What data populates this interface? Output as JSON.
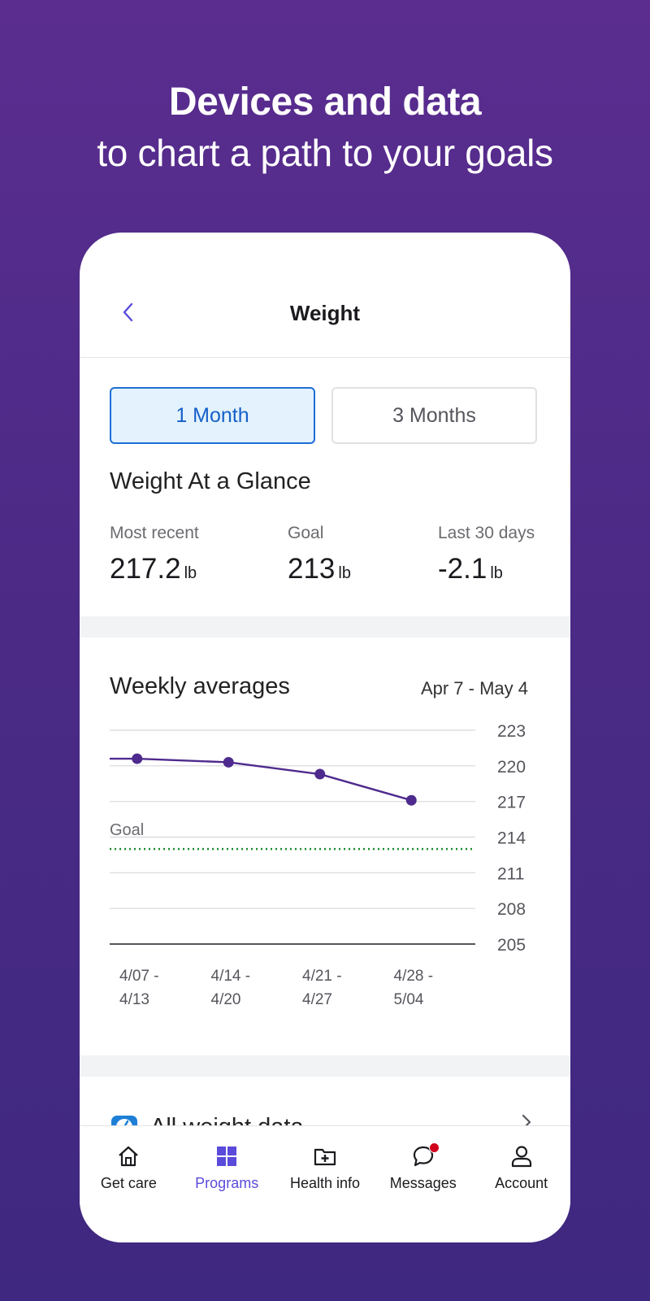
{
  "hero": {
    "title": "Devices and data",
    "subtitle": "to chart a path to your goals"
  },
  "screen": {
    "title": "Weight",
    "back_icon": "chevron-left-icon"
  },
  "range_tabs": [
    {
      "label": "1 Month",
      "selected": true
    },
    {
      "label": "3 Months",
      "selected": false
    }
  ],
  "glance": {
    "title": "Weight At a Glance",
    "stats": [
      {
        "label": "Most recent",
        "value": "217.2",
        "unit": "lb"
      },
      {
        "label": "Goal",
        "value": "213",
        "unit": "lb"
      },
      {
        "label": "Last 30 days",
        "value": "-2.1",
        "unit": "lb"
      }
    ]
  },
  "weekly": {
    "title": "Weekly averages",
    "date_range": "Apr 7 - May 4"
  },
  "chart_data": {
    "type": "line",
    "categories": [
      [
        "4/07 -",
        "4/13"
      ],
      [
        "4/14 -",
        "4/20"
      ],
      [
        "4/21 -",
        "4/27"
      ],
      [
        "4/28 -",
        "5/04"
      ]
    ],
    "series": [
      {
        "values": [
          220.6,
          220.3,
          219.3,
          217.1
        ],
        "color": "#4e2a8e"
      }
    ],
    "y_ticks": [
      223,
      220,
      217,
      214,
      211,
      208,
      205
    ],
    "ylim": [
      205,
      223
    ],
    "goal": {
      "label": "Goal",
      "value": 213,
      "color": "#1a8a2e"
    },
    "grid": true,
    "y_axis_position": "right"
  },
  "all_data": {
    "label": "All weight data",
    "icon": "scale-icon"
  },
  "tabbar": [
    {
      "label": "Get care",
      "icon": "home-icon",
      "active": false
    },
    {
      "label": "Programs",
      "icon": "grid-icon",
      "active": true
    },
    {
      "label": "Health info",
      "icon": "folder-plus-icon",
      "active": false
    },
    {
      "label": "Messages",
      "icon": "chat-icon",
      "active": false,
      "badge": true
    },
    {
      "label": "Account",
      "icon": "person-icon",
      "active": false
    }
  ],
  "colors": {
    "accent": "#5b4bdb",
    "selected_tab_bg": "#e3f2fd",
    "selected_tab_border": "#1d6fd6",
    "line": "#4e2a8e",
    "goal": "#1a8a2e",
    "badge": "#d0021b"
  }
}
